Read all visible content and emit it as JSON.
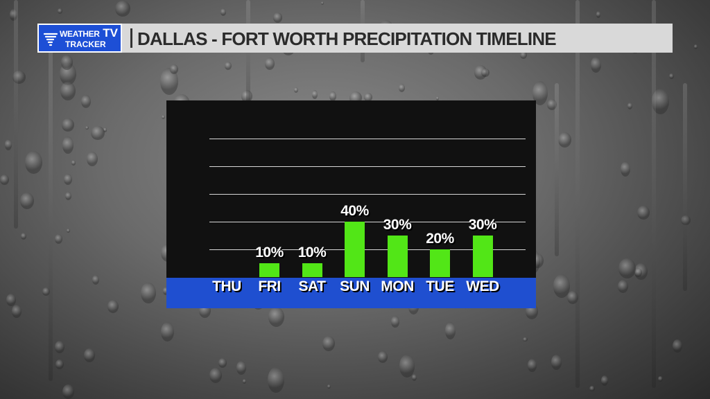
{
  "header": {
    "logo_line1": "WEATHER",
    "logo_line2": "TRACKER",
    "logo_tv": "TV",
    "title": "DALLAS - FORT WORTH PRECIPITATION TIMELINE"
  },
  "colors": {
    "bar": "#52e617",
    "day_band": "#1f4fd0",
    "logo_bg": "#1d4fd6",
    "panel_bg": "#111111"
  },
  "chart_data": {
    "type": "bar",
    "categories": [
      "THU",
      "FRI",
      "SAT",
      "SUN",
      "MON",
      "TUE",
      "WED"
    ],
    "values": [
      0,
      10,
      10,
      40,
      30,
      20,
      30
    ],
    "labels": [
      "",
      "10%",
      "10%",
      "40%",
      "30%",
      "20%",
      "30%"
    ],
    "ylim": [
      0,
      100
    ],
    "grid": true,
    "gridline_values": [
      20,
      40,
      60,
      80,
      100
    ],
    "title": "",
    "xlabel": "",
    "ylabel": ""
  }
}
